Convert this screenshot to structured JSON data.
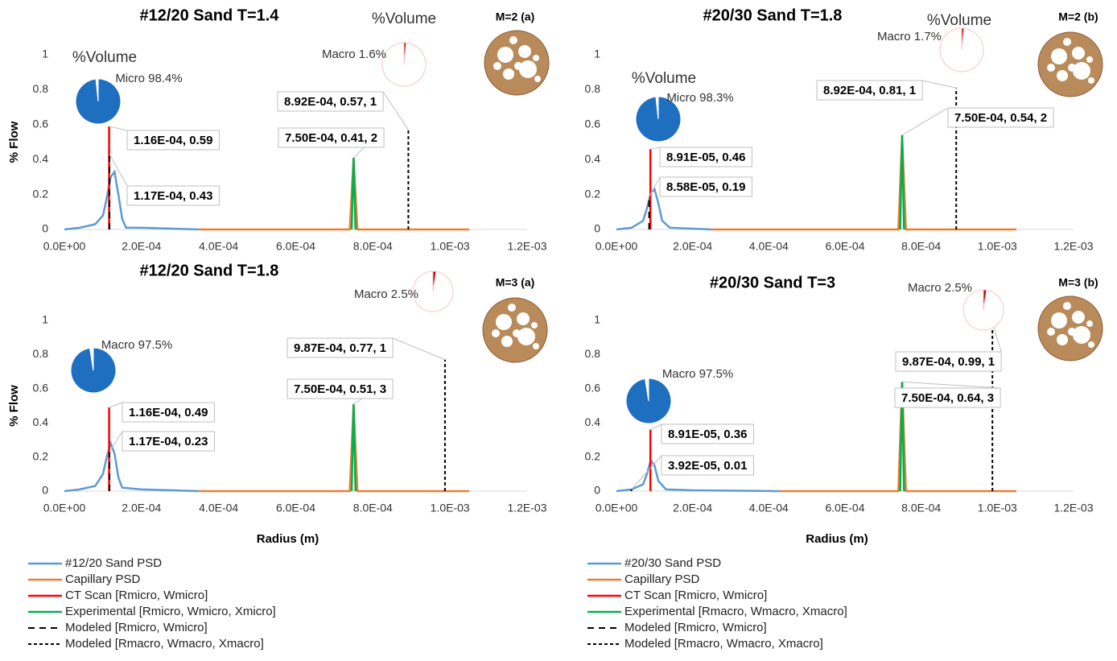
{
  "chart_data": [
    {
      "type": "line",
      "title": "#12/20 Sand T=1.4",
      "tag": "M=2 (a)",
      "ylabel": "% Flow",
      "xlim": [
        0,
        0.0012
      ],
      "ylim": [
        0,
        1
      ],
      "xticks": [
        {
          "value": 0,
          "label": "0.0E+00"
        },
        {
          "value": 0.0002,
          "label": "2.0E-04"
        },
        {
          "value": 0.0004,
          "label": "4.0E-04"
        },
        {
          "value": 0.0006,
          "label": "6.0E-04"
        },
        {
          "value": 0.0008,
          "label": "8.0E-04"
        },
        {
          "value": 0.001,
          "label": "1.0E-03"
        },
        {
          "value": 0.0012,
          "label": "1.2E-03"
        }
      ],
      "yticks": [
        0,
        0.2,
        0.4,
        0.6,
        0.8,
        1
      ],
      "series": [
        {
          "name": "#12/20 Sand PSD",
          "color": "#5b9bd5",
          "x": [
            0,
            4e-05,
            8e-05,
            0.0001,
            0.00011,
            0.00012,
            0.00013,
            0.00014,
            0.00015,
            0.00016,
            0.0002,
            0.00035
          ],
          "values": [
            0,
            0.01,
            0.03,
            0.08,
            0.18,
            0.3,
            0.33,
            0.2,
            0.06,
            0.01,
            0.01,
            0
          ]
        },
        {
          "name": "Capillary PSD",
          "color": "#ed7d31",
          "x": [
            0.00035,
            0.00074,
            0.00075,
            0.00076,
            0.00105
          ],
          "values": [
            0,
            0,
            0.41,
            0,
            0
          ]
        },
        {
          "name": "CT Scan [Rmicro, Wmicro]",
          "color": "#ff0000",
          "x": [
            0.000116,
            0.000116
          ],
          "values": [
            0,
            0.59
          ],
          "annotation": "1.16E-04, 0.59"
        },
        {
          "name": "Experimental [Rmicro, Wmicro, Xmicro]",
          "color": "#00b050",
          "x": [
            0.000745,
            0.00075,
            0.000755
          ],
          "values": [
            0,
            0.41,
            0
          ],
          "annotation": "7.50E-04, 0.41, 2"
        },
        {
          "name": "Modeled [Rmicro, Wmicro]",
          "color": "#000000",
          "dash": "8 6",
          "x": [
            0.000117,
            0.000117
          ],
          "values": [
            0,
            0.43
          ],
          "annotation": "1.17E-04, 0.43"
        },
        {
          "name": "Modeled [Rmacro, Wmacro, Xmacro]",
          "color": "#000000",
          "dash": "4 3",
          "x": [
            0.000892,
            0.000892
          ],
          "values": [
            0,
            0.57
          ],
          "annotation": "8.92E-04, 0.57, 1"
        }
      ],
      "pies": [
        {
          "title": "%Volume",
          "label": "Micro 98.4%",
          "values": [
            98.4,
            1.6
          ],
          "colors": [
            "#1f6fc0",
            "#ffffff"
          ]
        },
        {
          "title": "%Volume",
          "label": "Macro 1.6%",
          "values": [
            1.6,
            98.4
          ],
          "colors": [
            "#c00000",
            "#ffffff"
          ]
        }
      ]
    },
    {
      "type": "line",
      "title": "#20/30 Sand T=1.8",
      "tag": "M=2 (b)",
      "xlim": [
        0,
        0.0012
      ],
      "ylim": [
        0,
        1
      ],
      "xticks": [
        {
          "value": 0,
          "label": "0.0E+00"
        },
        {
          "value": 0.0002,
          "label": "2.0E-04"
        },
        {
          "value": 0.0004,
          "label": "4.0E-04"
        },
        {
          "value": 0.0006,
          "label": "6.0E-04"
        },
        {
          "value": 0.0008,
          "label": "8.0E-04"
        },
        {
          "value": 0.001,
          "label": "1.0E-03"
        },
        {
          "value": 0.0012,
          "label": "1.2E-03"
        }
      ],
      "yticks": [
        0,
        0.2,
        0.4,
        0.6,
        0.8,
        1
      ],
      "series": [
        {
          "name": "#20/30 Sand PSD",
          "color": "#5b9bd5",
          "x": [
            0,
            4e-05,
            7e-05,
            8e-05,
            9e-05,
            0.0001,
            0.00011,
            0.00012,
            0.00014,
            0.00025
          ],
          "values": [
            0,
            0.01,
            0.05,
            0.12,
            0.21,
            0.23,
            0.15,
            0.05,
            0.01,
            0
          ]
        },
        {
          "name": "Capillary PSD",
          "color": "#ed7d31",
          "x": [
            0.00025,
            0.00074,
            0.00075,
            0.00076,
            0.00105
          ],
          "values": [
            0,
            0,
            0.54,
            0,
            0
          ]
        },
        {
          "name": "CT Scan [Rmicro, Wmicro]",
          "color": "#ff0000",
          "x": [
            8.91e-05,
            8.91e-05
          ],
          "values": [
            0,
            0.46
          ],
          "annotation": "8.91E-05, 0.46"
        },
        {
          "name": "Experimental [Rmacro, Wmacro, Xmacro]",
          "color": "#00b050",
          "x": [
            0.000745,
            0.00075,
            0.000755
          ],
          "values": [
            0,
            0.54,
            0
          ],
          "annotation": "7.50E-04, 0.54, 2"
        },
        {
          "name": "Modeled [Rmicro, Wmicro]",
          "color": "#000000",
          "dash": "8 6",
          "x": [
            8.58e-05,
            8.58e-05
          ],
          "values": [
            0,
            0.19
          ],
          "annotation": "8.58E-05, 0.19"
        },
        {
          "name": "Modeled [Rmacro, Wmacro, Xmacro]",
          "color": "#000000",
          "dash": "4 3",
          "x": [
            0.000892,
            0.000892
          ],
          "values": [
            0,
            0.81
          ],
          "annotation": "8.92E-04, 0.81, 1"
        }
      ],
      "pies": [
        {
          "title": "%Volume",
          "label": "Micro 98.3%",
          "values": [
            98.3,
            1.7
          ],
          "colors": [
            "#1f6fc0",
            "#ffffff"
          ]
        },
        {
          "title": "%Volume",
          "label": "Macro 1.7%",
          "values": [
            1.7,
            98.3
          ],
          "colors": [
            "#c00000",
            "#ffffff"
          ]
        }
      ]
    },
    {
      "type": "line",
      "title": "#12/20 Sand T=1.8",
      "tag": "M=3 (a)",
      "ylabel": "% Flow",
      "xlabel": "Radius (m)",
      "xlim": [
        0,
        0.0012
      ],
      "ylim": [
        0,
        1
      ],
      "xticks": [
        {
          "value": 0,
          "label": "0.0E+00"
        },
        {
          "value": 0.0002,
          "label": "2.0E-04"
        },
        {
          "value": 0.0004,
          "label": "4.0E-04"
        },
        {
          "value": 0.0006,
          "label": "6.0E-04"
        },
        {
          "value": 0.0008,
          "label": "8.0E-04"
        },
        {
          "value": 0.001,
          "label": "1.0E-03"
        },
        {
          "value": 0.0012,
          "label": "1.2E-03"
        }
      ],
      "yticks": [
        0,
        0.2,
        0.4,
        0.6,
        0.8,
        1
      ],
      "series": [
        {
          "color": "#5b9bd5",
          "x": [
            0,
            4e-05,
            8e-05,
            0.0001,
            0.00011,
            0.00012,
            0.00013,
            0.00014,
            0.00015,
            0.0002,
            0.00035
          ],
          "values": [
            0,
            0.01,
            0.03,
            0.1,
            0.2,
            0.28,
            0.22,
            0.08,
            0.02,
            0.01,
            0
          ]
        },
        {
          "color": "#ed7d31",
          "x": [
            0.00035,
            0.00074,
            0.00075,
            0.00076,
            0.00105
          ],
          "values": [
            0,
            0,
            0.51,
            0,
            0
          ]
        },
        {
          "color": "#ff0000",
          "x": [
            0.000116,
            0.000116
          ],
          "values": [
            0,
            0.49
          ],
          "annotation": "1.16E-04, 0.49"
        },
        {
          "color": "#00b050",
          "x": [
            0.000745,
            0.00075,
            0.000755
          ],
          "values": [
            0,
            0.51,
            0
          ],
          "annotation": "7.50E-04, 0.51, 3"
        },
        {
          "color": "#000000",
          "dash": "8 6",
          "x": [
            0.000117,
            0.000117
          ],
          "values": [
            0,
            0.23
          ],
          "annotation": "1.17E-04, 0.23"
        },
        {
          "color": "#000000",
          "dash": "4 3",
          "x": [
            0.000987,
            0.000987
          ],
          "values": [
            0,
            0.77
          ],
          "annotation": "9.87E-04, 0.77, 1"
        }
      ],
      "pies": [
        {
          "label": "Macro 97.5%",
          "values": [
            97.5,
            2.5
          ],
          "colors": [
            "#1f6fc0",
            "#ffffff"
          ]
        },
        {
          "label": "Macro 2.5%",
          "values": [
            2.5,
            97.5
          ],
          "colors": [
            "#c00000",
            "#ffffff"
          ]
        }
      ]
    },
    {
      "type": "line",
      "title": "#20/30 Sand T=3",
      "tag": "M=3 (b)",
      "xlabel": "Radius (m)",
      "xlim": [
        0,
        0.0012
      ],
      "ylim": [
        0,
        1
      ],
      "xticks": [
        {
          "value": 0,
          "label": "0.0E+00"
        },
        {
          "value": 0.0002,
          "label": "2.0E-04"
        },
        {
          "value": 0.0004,
          "label": "4.0E-04"
        },
        {
          "value": 0.0006,
          "label": "6.0E-04"
        },
        {
          "value": 0.0008,
          "label": "8.0E-04"
        },
        {
          "value": 0.001,
          "label": "1.0E-03"
        },
        {
          "value": 0.0012,
          "label": "1.2E-03"
        }
      ],
      "yticks": [
        0,
        0.2,
        0.4,
        0.6,
        0.8,
        1
      ],
      "series": [
        {
          "color": "#5b9bd5",
          "x": [
            0,
            4e-05,
            7e-05,
            8e-05,
            9e-05,
            0.0001,
            0.00011,
            0.00013,
            0.0002,
            0.00043
          ],
          "values": [
            0,
            0.01,
            0.04,
            0.1,
            0.18,
            0.15,
            0.06,
            0.01,
            0.005,
            0
          ]
        },
        {
          "color": "#ed7d31",
          "x": [
            0.00043,
            0.00074,
            0.00075,
            0.00076,
            0.00105
          ],
          "values": [
            0,
            0,
            0.64,
            0,
            0
          ]
        },
        {
          "color": "#ff0000",
          "x": [
            8.91e-05,
            8.91e-05
          ],
          "values": [
            0,
            0.36
          ],
          "annotation": "8.91E-05, 0.36"
        },
        {
          "color": "#00b050",
          "x": [
            0.000745,
            0.00075,
            0.000755
          ],
          "values": [
            0,
            0.64,
            0
          ],
          "annotation": "7.50E-04, 0.64, 3"
        },
        {
          "color": "#000000",
          "dash": "8 6",
          "x": [
            3.92e-05,
            3.92e-05
          ],
          "values": [
            0,
            0.01
          ],
          "annotation": "3.92E-05, 0.01"
        },
        {
          "color": "#000000",
          "dash": "4 3",
          "x": [
            0.000987,
            0.000987
          ],
          "values": [
            0,
            0.99
          ],
          "annotation": "9.87E-04, 0.99, 1"
        }
      ],
      "pies": [
        {
          "label": "Macro 97.5%",
          "values": [
            97.5,
            2.5
          ],
          "colors": [
            "#1f6fc0",
            "#ffffff"
          ]
        },
        {
          "label": "Macro 2.5%",
          "values": [
            2.5,
            97.5
          ],
          "colors": [
            "#c00000",
            "#ffffff"
          ]
        }
      ]
    }
  ]
}
